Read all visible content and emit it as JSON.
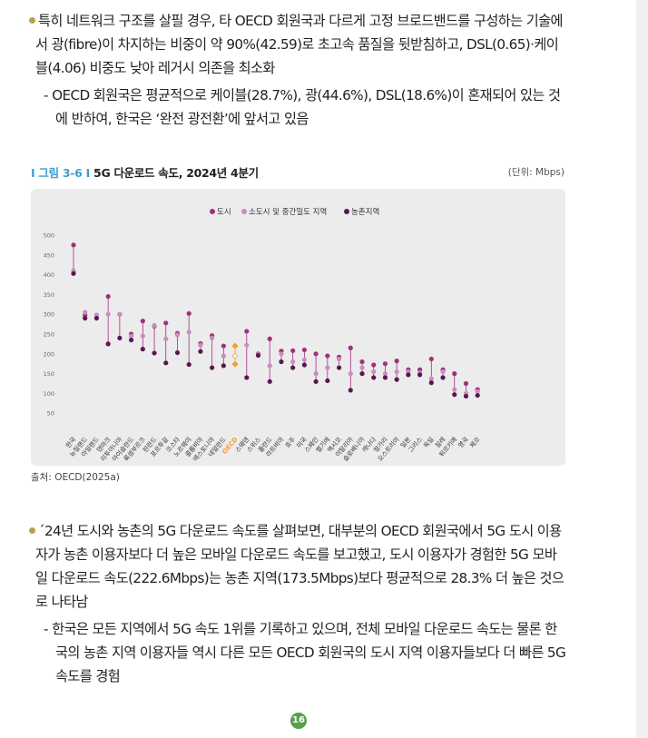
{
  "paragraph1": {
    "text": "특히 네트워크 구조를 살필 경우, 타 OECD 회원국과 다르게 고정 브로드밴드를 구성하는 기술에서 광(fibre)이 차지하는 비중이 약 90%(42.59)로 초고속 품질을 뒷받침하고, DSL(0.65)·케이블(4.06) 비중도 낮아 레거시 의존을 최소화",
    "sub": "- OECD 회원국은 평균적으로 케이블(28.7%), 광(44.6%), DSL(18.6%)이 혼재되어 있는 것에 반하여, 한국은 ‘완전 광전환’에 앞서고 있음"
  },
  "figure": {
    "bar": "I",
    "number": "그림 3-6",
    "title": "5G 다운로드 속도, 2024년 4분기",
    "unit": "(단위: Mbps)",
    "source": "출처: OECD(2025a)"
  },
  "paragraph2": {
    "text": "´24년 도시와 농촌의 5G 다운로드 속도를 살펴보면, 대부분의 OECD 회원국에서 5G 도시 이용자가 농촌 이용자보다 더 높은 모바일 다운로드 속도를 보고했고, 도시 이용자가 경험한 5G 모바일 다운로드 속도(222.6Mbps)는 농촌 지역(173.5Mbps)보다 평균적으로 28.3% 더 높은 것으로 나타남",
    "sub": "- 한국은 모든 지역에서 5G 속도 1위를 기록하고 있으며, 전체 모바일 다운로드 속도는 물론 한국의 농촌 지역 이용자들 역시 다른 모든 OECD 회원국의 도시 지역 이용자들보다 더 빠른 5G 속도를 경험"
  },
  "page_number": "16",
  "colors": {
    "urban": "#a0307a",
    "town": "#c98dbd",
    "rural": "#5a1650",
    "oecd": "#f0a030",
    "connector": "#a0307a"
  },
  "chart_data": {
    "type": "scatter",
    "legend": [
      "도시",
      "소도시 및 중간밀도 지역",
      "농촌지역"
    ],
    "legend_position": "top-center",
    "yticks": [
      50,
      100,
      150,
      200,
      250,
      300,
      350,
      400,
      450,
      500
    ],
    "ylim": [
      0,
      500
    ],
    "highlight": "OECD",
    "categories": [
      "한국",
      "뉴질랜드",
      "아일랜드",
      "덴마크",
      "리투아니아",
      "아이슬란드",
      "룩셈부르크",
      "핀란드",
      "포르투갈",
      "코스타",
      "노르웨이",
      "콜롬비아",
      "에스토니아",
      "네덜란드",
      "OECD",
      "스웨덴",
      "스위스",
      "폴란드",
      "라트비아",
      "호주",
      "미국",
      "스페인",
      "벨기에",
      "멕시코",
      "이탈리아",
      "슬로베니아",
      "캐나다",
      "헝가리",
      "오스트리아",
      "일본",
      "그리스",
      "독일",
      "칠레",
      "튀르키예",
      "영국",
      "체코"
    ],
    "series": [
      {
        "name": "도시",
        "values": [
          475,
          298,
          298,
          345,
          300,
          250,
          283,
          270,
          278,
          252,
          302,
          226,
          246,
          220,
          220,
          257,
          200,
          238,
          207,
          208,
          210,
          200,
          195,
          192,
          215,
          180,
          172,
          175,
          182,
          160,
          160,
          187,
          160,
          150,
          125,
          110
        ]
      },
      {
        "name": "소도시 및 중간밀도 지역",
        "values": [
          410,
          305,
          298,
          300,
          300,
          245,
          245,
          272,
          238,
          248,
          255,
          222,
          240,
          195,
          195,
          222,
          198,
          170,
          200,
          180,
          185,
          150,
          165,
          187,
          150,
          165,
          155,
          150,
          155,
          155,
          152,
          137,
          155,
          110,
          100,
          105
        ]
      },
      {
        "name": "농촌지역",
        "values": [
          403,
          290,
          290,
          225,
          240,
          235,
          212,
          202,
          177,
          203,
          173,
          206,
          165,
          170,
          174,
          140,
          196,
          130,
          180,
          165,
          172,
          130,
          132,
          165,
          108,
          150,
          140,
          140,
          135,
          147,
          147,
          127,
          140,
          97,
          93,
          95
        ]
      }
    ]
  }
}
